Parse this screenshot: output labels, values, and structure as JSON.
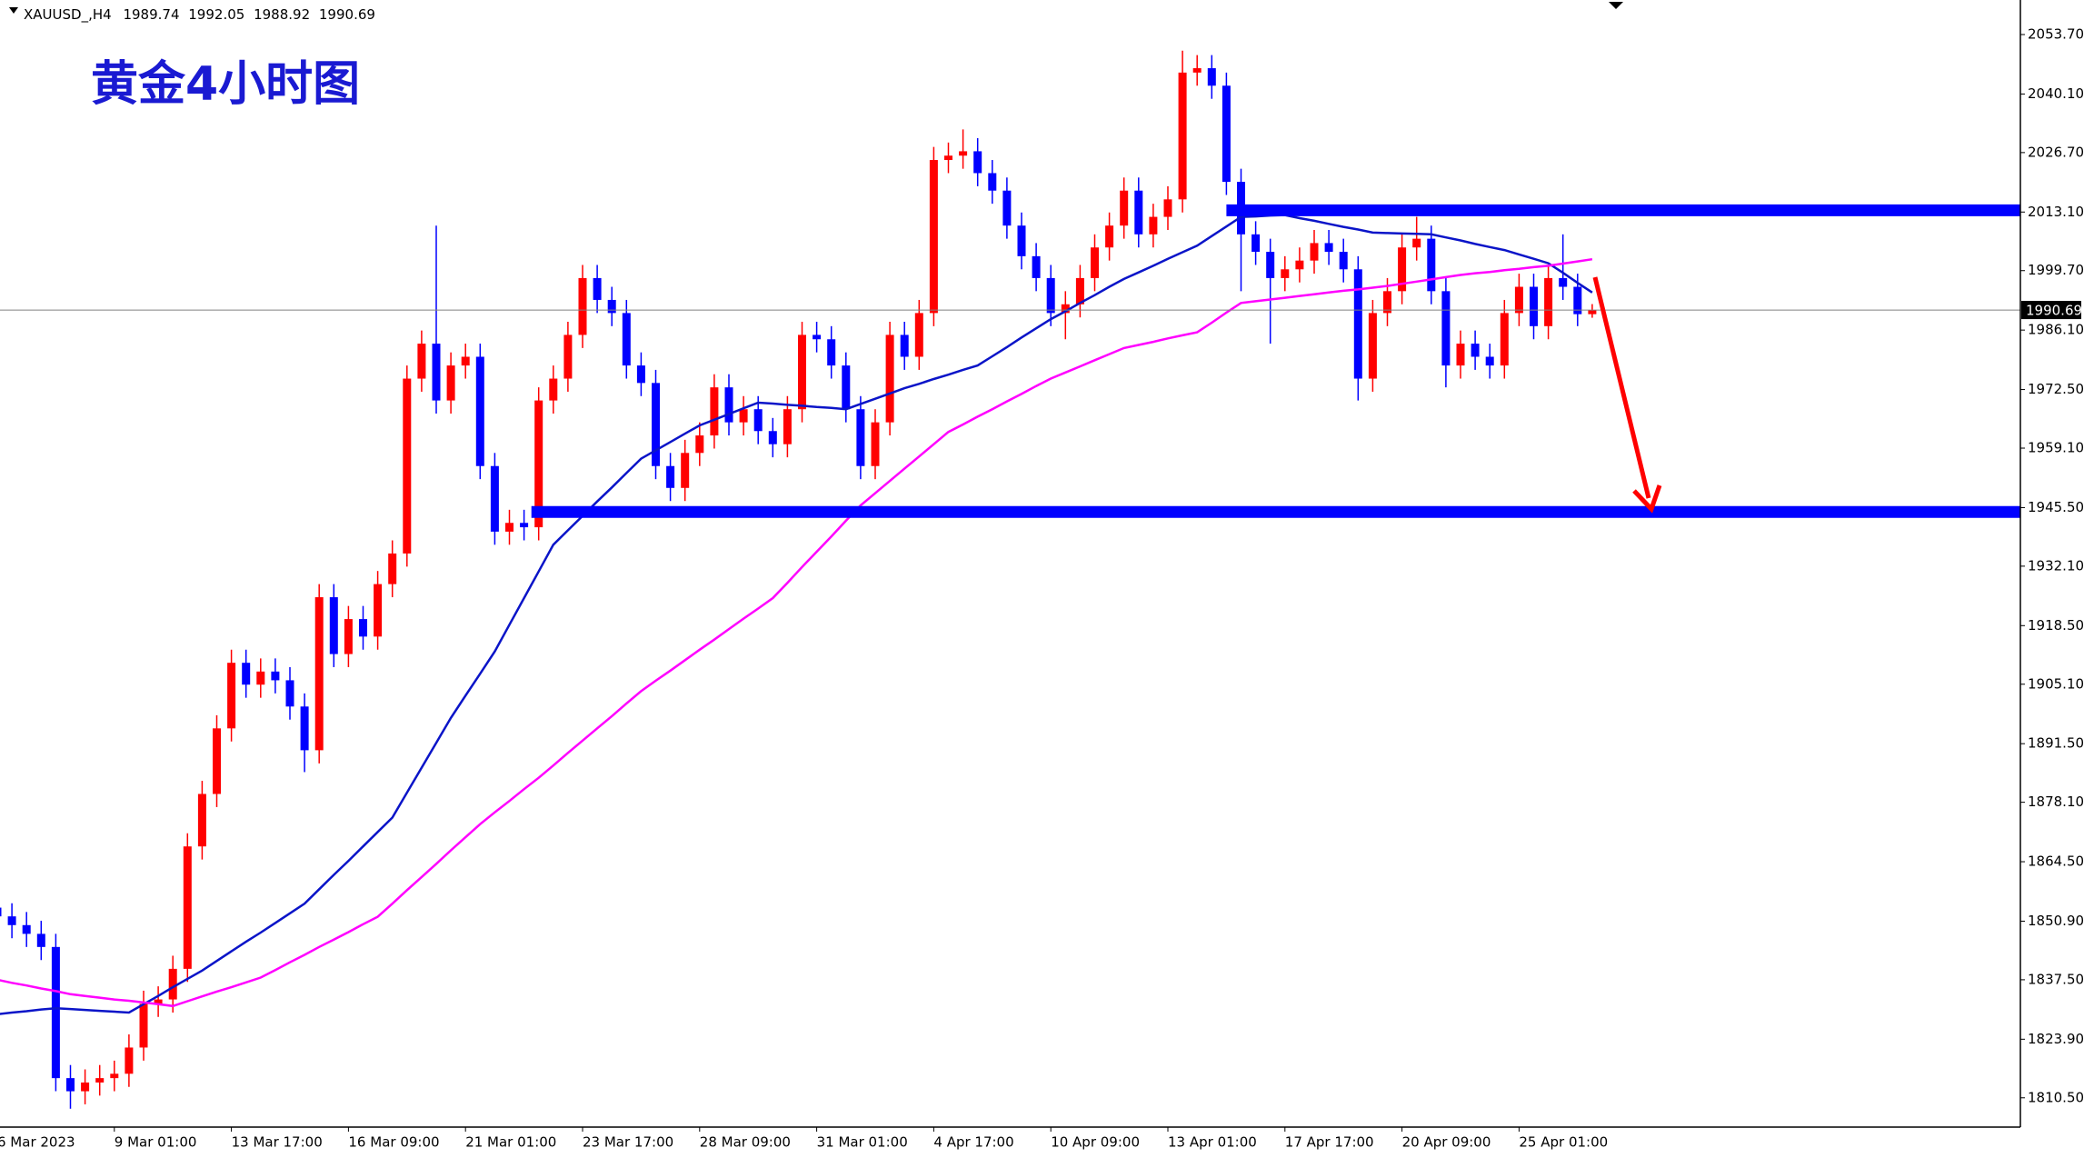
{
  "chart_data": {
    "type": "candlestick",
    "symbol": "XAUUSD_,H4",
    "title": "黄金4小时图",
    "categories": [
      "6 Mar 2023",
      null,
      null,
      null,
      null,
      null,
      null,
      null,
      "9 Mar 01:00",
      null,
      null,
      null,
      null,
      null,
      null,
      null,
      "13 Mar 17:00",
      null,
      null,
      null,
      null,
      null,
      null,
      null,
      "16 Mar 09:00",
      null,
      null,
      null,
      null,
      null,
      null,
      null,
      "21 Mar 01:00",
      null,
      null,
      null,
      null,
      null,
      null,
      null,
      "23 Mar 17:00",
      null,
      null,
      null,
      null,
      null,
      null,
      null,
      "28 Mar 09:00",
      null,
      null,
      null,
      null,
      null,
      null,
      null,
      "31 Mar 01:00",
      null,
      null,
      null,
      null,
      null,
      null,
      null,
      "4 Apr 17:00",
      null,
      null,
      null,
      null,
      null,
      null,
      null,
      "10 Apr 09:00",
      null,
      null,
      null,
      null,
      null,
      null,
      null,
      "13 Apr 01:00",
      null,
      null,
      null,
      null,
      null,
      null,
      null,
      "17 Apr 17:00",
      null,
      null,
      null,
      null,
      null,
      null,
      null,
      "20 Apr 09:00",
      null,
      null,
      null,
      null,
      null,
      null,
      null,
      "25 Apr 01:00",
      null,
      null,
      null,
      null,
      null
    ],
    "open": [
      1854,
      1852,
      1850,
      1848,
      1845,
      1815,
      1812,
      1814,
      1815,
      1816,
      1822,
      1832,
      1833,
      1840,
      1868,
      1880,
      1895,
      1910,
      1905,
      1908,
      1906,
      1900,
      1890,
      1925,
      1912,
      1920,
      1916,
      1928,
      1935,
      1975,
      1983,
      1970,
      1978,
      1980,
      1955,
      1940,
      1942,
      1941,
      1970,
      1975,
      1985,
      1998,
      1993,
      1990,
      1978,
      1974,
      1955,
      1950,
      1958,
      1962,
      1973,
      1965,
      1968,
      1963,
      1960,
      1968,
      1985,
      1984,
      1978,
      1968,
      1955,
      1965,
      1985,
      1980,
      1990,
      2025,
      2026,
      2027,
      2022,
      2018,
      2010,
      2003,
      1998,
      1990,
      1992,
      1998,
      2005,
      2010,
      2018,
      2008,
      2012,
      2016,
      2045,
      2046,
      2042,
      2020,
      2008,
      2004,
      1998,
      2000,
      2002,
      2006,
      2004,
      2000,
      1975,
      1990,
      1995,
      2005,
      2007,
      1995,
      1978,
      1983,
      1980,
      1978,
      1990,
      1996,
      1987,
      1998,
      1996,
      1989.74
    ],
    "high": [
      1857,
      1855,
      1853,
      1851,
      1848,
      1818,
      1817,
      1818,
      1819,
      1825,
      1835,
      1836,
      1843,
      1871,
      1883,
      1898,
      1913,
      1913,
      1911,
      1911,
      1909,
      1903,
      1928,
      1928,
      1923,
      1923,
      1931,
      1938,
      1978,
      1986,
      2010,
      1981,
      1983,
      1983,
      1958,
      1945,
      1945,
      1973,
      1978,
      1988,
      2001,
      2001,
      1996,
      1993,
      1981,
      1977,
      1958,
      1961,
      1965,
      1976,
      1976,
      1971,
      1971,
      1966,
      1971,
      1988,
      1988,
      1987,
      1981,
      1971,
      1968,
      1988,
      1988,
      1993,
      2028,
      2029,
      2032,
      2030,
      2025,
      2021,
      2013,
      2006,
      2001,
      1995,
      2001,
      2008,
      2013,
      2021,
      2021,
      2015,
      2019,
      2050,
      2049,
      2049,
      2045,
      2023,
      2011,
      2007,
      2003,
      2005,
      2009,
      2009,
      2007,
      2003,
      1993,
      1998,
      2008,
      2012,
      2010,
      1998,
      1986,
      1986,
      1983,
      1993,
      1999,
      1999,
      2001,
      2008,
      1999,
      1992.05
    ],
    "low": [
      1849,
      1847,
      1845,
      1842,
      1812,
      1808,
      1809,
      1811,
      1812,
      1813,
      1819,
      1829,
      1830,
      1837,
      1865,
      1877,
      1892,
      1902,
      1902,
      1903,
      1897,
      1885,
      1887,
      1909,
      1909,
      1913,
      1913,
      1925,
      1932,
      1972,
      1967,
      1967,
      1975,
      1952,
      1937,
      1937,
      1938,
      1938,
      1967,
      1972,
      1982,
      1990,
      1987,
      1975,
      1971,
      1952,
      1947,
      1947,
      1955,
      1959,
      1962,
      1962,
      1960,
      1957,
      1957,
      1965,
      1981,
      1975,
      1965,
      1952,
      1952,
      1962,
      1977,
      1977,
      1987,
      2022,
      2023,
      2019,
      2015,
      2007,
      2000,
      1995,
      1987,
      1984,
      1989,
      1995,
      2002,
      2007,
      2005,
      2005,
      2009,
      2013,
      2042,
      2039,
      2017,
      1995,
      2001,
      1983,
      1995,
      1997,
      1999,
      2001,
      1997,
      1970,
      1972,
      1987,
      1992,
      2002,
      1992,
      1973,
      1975,
      1977,
      1975,
      1975,
      1987,
      1984,
      1984,
      1993,
      1987,
      1988.92
    ],
    "close": [
      1852,
      1850,
      1848,
      1845,
      1815,
      1812,
      1814,
      1815,
      1816,
      1822,
      1832,
      1833,
      1840,
      1868,
      1880,
      1895,
      1910,
      1905,
      1908,
      1906,
      1900,
      1890,
      1925,
      1912,
      1920,
      1916,
      1928,
      1935,
      1975,
      1983,
      1970,
      1978,
      1980,
      1955,
      1940,
      1942,
      1941,
      1970,
      1975,
      1985,
      1998,
      1993,
      1990,
      1978,
      1974,
      1955,
      1950,
      1958,
      1962,
      1973,
      1965,
      1968,
      1963,
      1960,
      1968,
      1985,
      1984,
      1978,
      1968,
      1955,
      1965,
      1985,
      1980,
      1990,
      2025,
      2026,
      2027,
      2022,
      2018,
      2010,
      2003,
      1998,
      1990,
      1992,
      1998,
      2005,
      2010,
      2018,
      2008,
      2012,
      2016,
      2045,
      2046,
      2042,
      2020,
      2008,
      2004,
      1998,
      2000,
      2002,
      2006,
      2004,
      2000,
      1975,
      1990,
      1995,
      2005,
      2007,
      1995,
      1978,
      1983,
      1980,
      1978,
      1990,
      1996,
      1987,
      1998,
      1996,
      1989.74,
      1990.69
    ],
    "up_color": "#ff0000",
    "down_color": "#0000ff",
    "moving_averages": [
      {
        "color": "#0a14c8",
        "values": [
          1829.6,
          1830,
          1830.3,
          1830.7,
          1831,
          1830.8,
          1830.6,
          1830.4,
          1830.2,
          1830,
          1831.9,
          1833.8,
          1835.8,
          1837.7,
          1839.6,
          1841.8,
          1844,
          1846.2,
          1848.3,
          1850.5,
          1852.7,
          1854.9,
          1858.2,
          1861.5,
          1864.7,
          1868,
          1871.3,
          1874.6,
          1880.3,
          1886,
          1891.7,
          1897.4,
          1902.5,
          1907.5,
          1912.6,
          1918.7,
          1924.8,
          1930.9,
          1937,
          1940.3,
          1943.6,
          1946.9,
          1950.1,
          1953.4,
          1956.7,
          1958.6,
          1960.5,
          1962.4,
          1964.3,
          1965.6,
          1966.9,
          1968.2,
          1969.5,
          1969.3,
          1969,
          1968.8,
          1968.5,
          1968.3,
          1968,
          1969.2,
          1970.4,
          1971.6,
          1972.8,
          1973.8,
          1974.9,
          1975.9,
          1977,
          1978,
          1980.1,
          1982.2,
          1984.4,
          1986.5,
          1988.6,
          1990.4,
          1992.3,
          1994.1,
          1996,
          1997.8,
          1999.3,
          2000.8,
          2002.4,
          2003.9,
          2005.4,
          2007.6,
          2009.8,
          2012,
          2012.1,
          2012.3,
          2012.4,
          2011.7,
          2011.1,
          2010.4,
          2009.7,
          2009.1,
          2008.4,
          2008.3,
          2008.2,
          2008.1,
          2008,
          2007.3,
          2006.6,
          2005.8,
          2005.1,
          2004.4,
          2003.4,
          2002.4,
          2001.4,
          1999.2,
          1996.9,
          1994.7
        ]
      },
      {
        "color": "#ff00ff",
        "values": [
          1837.5,
          1836.8,
          1836.2,
          1835.5,
          1834.9,
          1834.2,
          1833.8,
          1833.4,
          1833,
          1832.7,
          1832.3,
          1831.9,
          1831.5,
          1832.6,
          1833.7,
          1834.8,
          1835.8,
          1836.9,
          1838,
          1839.7,
          1841.5,
          1843.2,
          1845,
          1846.7,
          1848.4,
          1850.2,
          1851.9,
          1854.9,
          1858,
          1861,
          1864,
          1867.1,
          1870.1,
          1873.1,
          1875.8,
          1878.4,
          1881.1,
          1883.7,
          1886.5,
          1889.4,
          1892.2,
          1895,
          1897.8,
          1900.7,
          1903.5,
          1905.9,
          1908.2,
          1910.6,
          1913,
          1915.3,
          1917.7,
          1920.1,
          1922.4,
          1924.8,
          1928.3,
          1931.9,
          1935.4,
          1938.9,
          1942.5,
          1946,
          1948.8,
          1951.6,
          1954.4,
          1957.2,
          1960,
          1962.8,
          1964.5,
          1966.3,
          1968,
          1969.8,
          1971.5,
          1973.3,
          1975,
          1976.4,
          1977.8,
          1979.2,
          1980.6,
          1982,
          1982.7,
          1983.4,
          1984.2,
          1984.9,
          1985.6,
          1987.8,
          1990.1,
          1992.3,
          1992.7,
          1993.1,
          1993.5,
          1993.9,
          1994.3,
          1994.7,
          1995.1,
          1995.4,
          1995.8,
          1996.2,
          1996.7,
          1997.2,
          1997.7,
          1998.2,
          1998.7,
          1999.1,
          1999.4,
          1999.8,
          2000.1,
          2000.5,
          2000.8,
          2001.3,
          2001.8,
          2002.3
        ]
      }
    ],
    "levels": [
      {
        "value": 2013.5,
        "color": "#0000ff"
      },
      {
        "value": 1944.5,
        "color": "#0000ff"
      }
    ],
    "ylim": [
      1803.8,
      2061.6
    ],
    "yticks": [
      {
        "value": 2053.7,
        "label": "2053.70"
      },
      {
        "value": 2040.1,
        "label": "2040.10"
      },
      {
        "value": 2026.7,
        "label": "2026.70"
      },
      {
        "value": 2013.1,
        "label": "2013.10"
      },
      {
        "value": 1999.7,
        "label": "1999.70"
      },
      {
        "value": 1986.1,
        "label": "1986.10"
      },
      {
        "value": 1972.5,
        "label": "1972.50"
      },
      {
        "value": 1959.1,
        "label": "1959.10"
      },
      {
        "value": 1945.5,
        "label": "1945.50"
      },
      {
        "value": 1932.1,
        "label": "1932.10"
      },
      {
        "value": 1918.5,
        "label": "1918.50"
      },
      {
        "value": 1905.1,
        "label": "1905.10"
      },
      {
        "value": 1891.5,
        "label": "1891.50"
      },
      {
        "value": 1878.1,
        "label": "1878.10"
      },
      {
        "value": 1864.5,
        "label": "1864.50"
      },
      {
        "value": 1850.9,
        "label": "1850.90"
      },
      {
        "value": 1837.5,
        "label": "1837.50"
      },
      {
        "value": 1823.9,
        "label": "1823.90"
      },
      {
        "value": 1810.5,
        "label": "1810.50"
      }
    ]
  }
}
